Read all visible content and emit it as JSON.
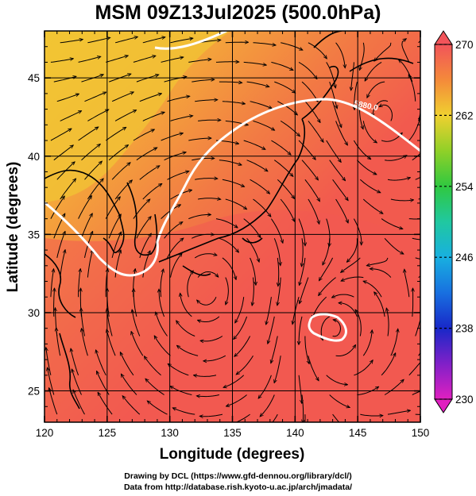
{
  "title": "MSM 09Z13Jul2025 (500.0hPa)",
  "axes": {
    "xlabel": "Longitude (degrees)",
    "ylabel": "Latitude  (degrees)",
    "x_ticks": [
      "120",
      "125",
      "130",
      "135",
      "140",
      "145",
      "150"
    ],
    "y_ticks": [
      "25",
      "30",
      "35",
      "40",
      "45"
    ]
  },
  "colorbar": {
    "labels": [
      "270",
      "262",
      "254",
      "246",
      "238",
      "230"
    ],
    "min": 230,
    "max": 270
  },
  "contour_label": "5880.0",
  "credits": {
    "line1": "Drawing by DCL (https://www.gfd-dennou.org/library/dcl/)",
    "line2": "Data from http://database.rish.kyoto-u.ac.jp/arch/jmadata/"
  },
  "colors": {
    "warm_red": "#f25a4e",
    "orange": "#f49a3a",
    "yellow": "#f0c830",
    "contour": "#ffffff"
  }
}
